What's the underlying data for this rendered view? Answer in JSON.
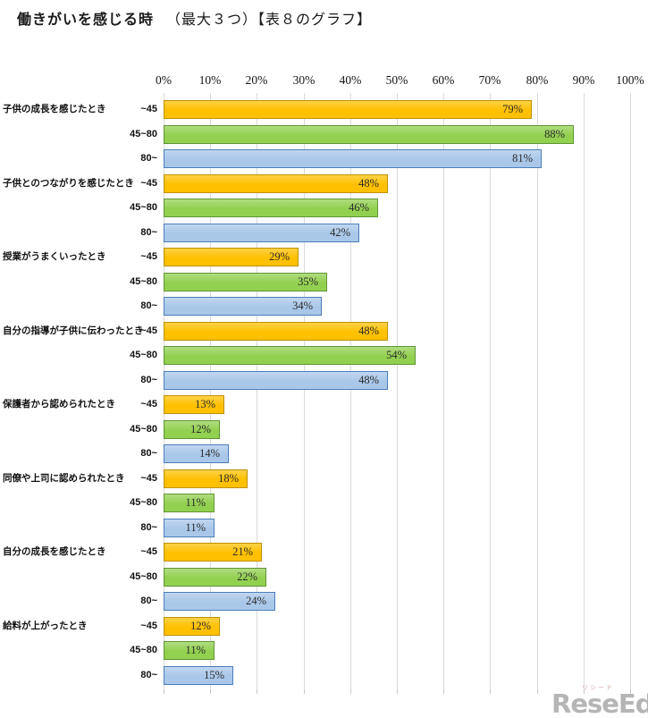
{
  "title": {
    "main": "働きがいを感じる時",
    "suffix": "（最大３つ）【表８のグラフ】"
  },
  "logo": {
    "text": "ReseEd",
    "ruby": "リシード"
  },
  "colors": {
    "grid": "#d9d9d9",
    "tick": "#c9c9c9",
    "label_text": "#111111",
    "value_text": "#2b2b2b"
  },
  "chart_data": {
    "type": "bar",
    "orientation": "horizontal",
    "title": "働きがいを感じる時（最大３つ）【表８のグラフ】",
    "xlim": [
      0,
      100
    ],
    "x_ticks": [
      "0%",
      "10%",
      "20%",
      "30%",
      "40%",
      "50%",
      "60%",
      "70%",
      "80%",
      "90%",
      "100%"
    ],
    "grid": true,
    "value_labels": "inside-end",
    "categories": [
      "子供の成長を感じたとき",
      "子供とのつながりを感じたとき",
      "授業がうまくいったとき",
      "自分の指導が子供に伝わったとき",
      "保護者から認められたとき",
      "同僚や上司に認められたとき",
      "自分の成長を感じたとき",
      "給料が上がったとき"
    ],
    "series": [
      {
        "name": "~45",
        "fill": "#FFC000",
        "border": "#BF9000",
        "values": [
          79,
          48,
          29,
          48,
          13,
          18,
          21,
          12
        ]
      },
      {
        "name": "45~80",
        "fill": "#92D050",
        "border": "#5E9632",
        "values": [
          88,
          46,
          35,
          54,
          12,
          11,
          22,
          11
        ]
      },
      {
        "name": "80~",
        "fill": "#A9C7E9",
        "border": "#4A7EBB",
        "values": [
          81,
          42,
          34,
          48,
          14,
          11,
          24,
          15
        ]
      }
    ]
  }
}
